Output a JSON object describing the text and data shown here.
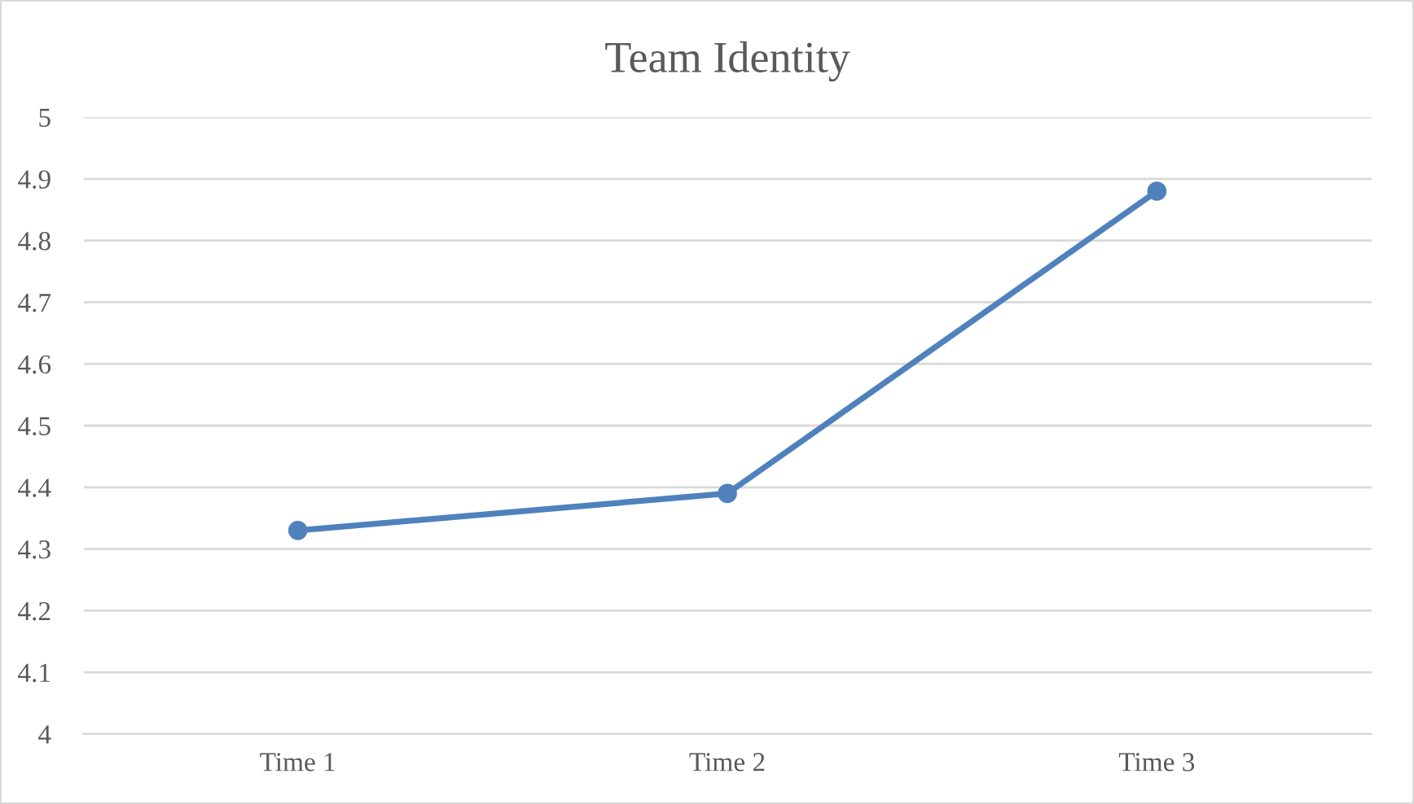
{
  "chart_data": {
    "type": "line",
    "title": "Team Identity",
    "categories": [
      "Time 1",
      "Time 2",
      "Time 3"
    ],
    "series": [
      {
        "color": "#4f81bd",
        "values": [
          4.33,
          4.39,
          4.88
        ]
      }
    ],
    "ylim": [
      4,
      5
    ],
    "yticks": [
      4,
      4.1,
      4.2,
      4.3,
      4.4,
      4.5,
      4.6,
      4.7,
      4.8,
      4.9,
      5
    ],
    "grid": "y",
    "marker": "circle",
    "line_style": "solid"
  }
}
